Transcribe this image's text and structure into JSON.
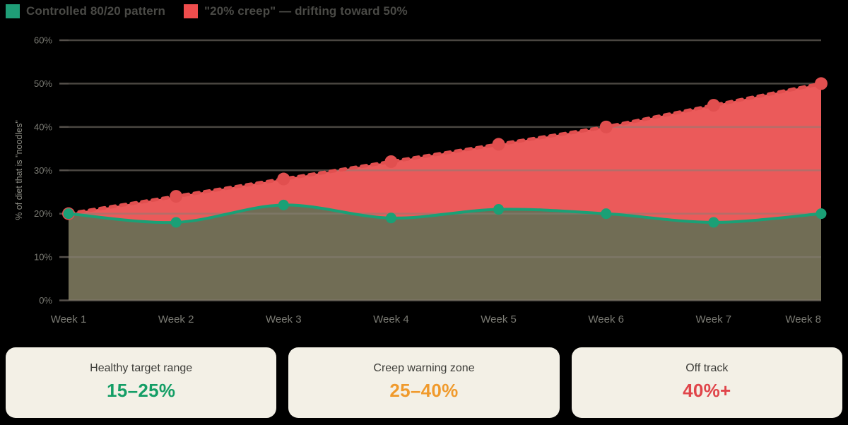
{
  "legend": [
    {
      "label": "Controlled 80/20 pattern",
      "color": "#1f9e77"
    },
    {
      "label": "\"20% creep\" — drifting toward 50%",
      "color": "#ef4d4d"
    }
  ],
  "chart_data": {
    "type": "line",
    "categories": [
      "Week 1",
      "Week 2",
      "Week 3",
      "Week 4",
      "Week 5",
      "Week 6",
      "Week 7",
      "Week 8"
    ],
    "series": [
      {
        "name": "Controlled 80/20 pattern",
        "values": [
          20,
          18,
          22,
          19,
          21,
          20,
          18,
          20
        ],
        "color": "#1aa076",
        "line_style": "solid",
        "smooth": true,
        "area_fill": "#716d55"
      },
      {
        "name": "\"20% creep\" — drifting toward 50%",
        "values": [
          20,
          24,
          28,
          32,
          36,
          40,
          45,
          50
        ],
        "color": "#e14f4f",
        "line_style": "dashed",
        "smooth": false,
        "area_fill": "#f85f5f"
      }
    ],
    "ylabel": "% of diet that is \"noodles\"",
    "xlabel": "",
    "yticks": [
      "0%",
      "10%",
      "20%",
      "30%",
      "40%",
      "50%",
      "60%"
    ],
    "ylim": [
      0,
      60
    ],
    "grid": true,
    "legend_position": "top-left"
  },
  "cards": [
    {
      "title": "Healthy target range",
      "value": "15–25%",
      "value_color": "#149e66"
    },
    {
      "title": "Creep warning zone",
      "value": "25–40%",
      "value_color": "#f09a2c"
    },
    {
      "title": "Off track",
      "value": "40%+",
      "value_color": "#e0454a"
    }
  ],
  "theme": {
    "background": "#000000",
    "gridline": "#55504b",
    "tick_text": "#7b7b74",
    "axis_title_text": "#8c8c84",
    "legend_text": "#4a4a46",
    "card_background": "#f3f0e6"
  }
}
